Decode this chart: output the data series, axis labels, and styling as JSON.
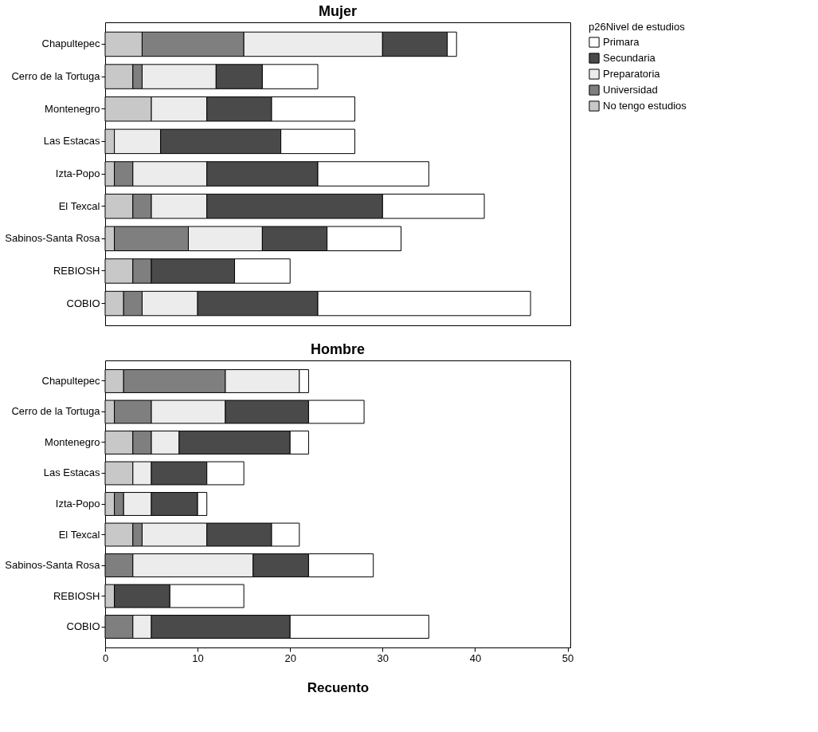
{
  "chart_data": [
    {
      "type": "bar",
      "orientation": "horizontal",
      "stacked": true,
      "title": "Mujer",
      "legend_title": "p26Nivel de estudios",
      "legend": "top right",
      "tick_labels": "y",
      "grid": false,
      "categories": [
        "Chapultepec",
        "Cerro de la Tortuga",
        "Montenegro",
        "Las Estacas",
        "Izta-Popo",
        "El Texcal",
        "Sabinos-Santa Rosa",
        "REBIOSH",
        "COBIO"
      ],
      "xlim": [
        0,
        50.3
      ],
      "xticks": [
        0,
        10,
        20,
        30,
        40,
        50
      ],
      "series": [
        {
          "name": "No tengo estudios",
          "color": "#c8c8c8",
          "values": [
            4,
            3,
            5,
            1,
            1,
            3,
            1,
            3,
            2
          ]
        },
        {
          "name": "Universidad",
          "color": "#7f7f7f",
          "values": [
            11,
            1,
            0,
            0,
            2,
            2,
            8,
            2,
            2
          ]
        },
        {
          "name": "Preparatoria",
          "color": "#ececec",
          "values": [
            15,
            8,
            6,
            5,
            8,
            6,
            8,
            0,
            6
          ]
        },
        {
          "name": "Secundaria",
          "color": "#4a4a4a",
          "values": [
            7,
            5,
            7,
            13,
            12,
            19,
            7,
            9,
            13
          ]
        },
        {
          "name": "Primara",
          "color": "#ffffff",
          "values": [
            1,
            6,
            9,
            8,
            12,
            11,
            8,
            6,
            23
          ]
        }
      ]
    },
    {
      "type": "bar",
      "orientation": "horizontal",
      "stacked": true,
      "title": "Hombre",
      "xlabel": "Recuento",
      "grid": false,
      "categories": [
        "Chapultepec",
        "Cerro de la Tortuga",
        "Montenegro",
        "Las Estacas",
        "Izta-Popo",
        "El Texcal",
        "Sabinos-Santa Rosa",
        "REBIOSH",
        "COBIO"
      ],
      "xlim": [
        0,
        50.3
      ],
      "xticks": [
        0,
        10,
        20,
        30,
        40,
        50
      ],
      "series": [
        {
          "color": "#c8c8c8",
          "values": [
            2,
            1,
            3,
            3,
            1,
            3,
            0,
            1,
            0
          ]
        },
        {
          "color": "#7f7f7f",
          "values": [
            11,
            4,
            2,
            0,
            1,
            1,
            3,
            0,
            3
          ]
        },
        {
          "color": "#ececec",
          "values": [
            8,
            8,
            3,
            2,
            3,
            7,
            13,
            0,
            2
          ]
        },
        {
          "color": "#4a4a4a",
          "values": [
            0,
            9,
            12,
            6,
            5,
            7,
            6,
            6,
            15
          ]
        },
        {
          "color": "#ffffff",
          "values": [
            1,
            6,
            2,
            4,
            1,
            3,
            7,
            8,
            15
          ]
        }
      ]
    }
  ]
}
